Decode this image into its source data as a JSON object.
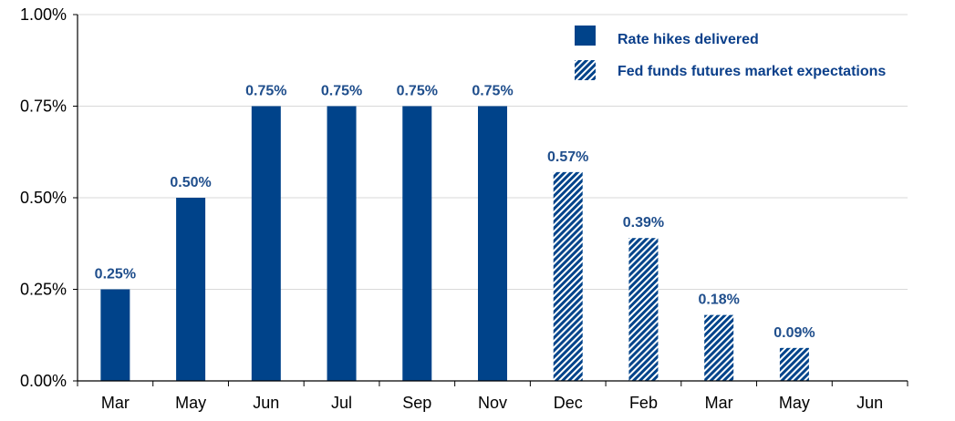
{
  "chart_data": {
    "type": "bar",
    "categories": [
      "Mar",
      "May",
      "Jun",
      "Jul",
      "Sep",
      "Nov",
      "Dec",
      "Feb",
      "Mar",
      "May",
      "Jun"
    ],
    "series": [
      {
        "name": "Rate hikes delivered",
        "values": [
          0.25,
          0.5,
          0.75,
          0.75,
          0.75,
          0.75,
          null,
          null,
          null,
          null,
          null
        ],
        "labels": [
          "0.25%",
          "0.50%",
          "0.75%",
          "0.75%",
          "0.75%",
          "0.75%",
          "",
          "",
          "",
          "",
          ""
        ],
        "style": "solid"
      },
      {
        "name": "Fed funds futures market expectations",
        "values": [
          null,
          null,
          null,
          null,
          null,
          null,
          0.57,
          0.39,
          0.18,
          0.09,
          null
        ],
        "labels": [
          "",
          "",
          "",
          "",
          "",
          "",
          "0.57%",
          "0.39%",
          "0.18%",
          "0.09%",
          ""
        ],
        "style": "hatched"
      }
    ],
    "yticks": [
      "0.00%",
      "0.25%",
      "0.50%",
      "0.75%",
      "1.00%"
    ],
    "ytick_values": [
      0,
      0.25,
      0.5,
      0.75,
      1.0
    ],
    "ylim": [
      0,
      1.0
    ],
    "grid": true,
    "legend_position": "top-right",
    "colors": {
      "bar": "#00438a",
      "label": "#1f4e8c",
      "legend_text": "#0b3f8a",
      "grid": "#d9d9d9"
    }
  }
}
